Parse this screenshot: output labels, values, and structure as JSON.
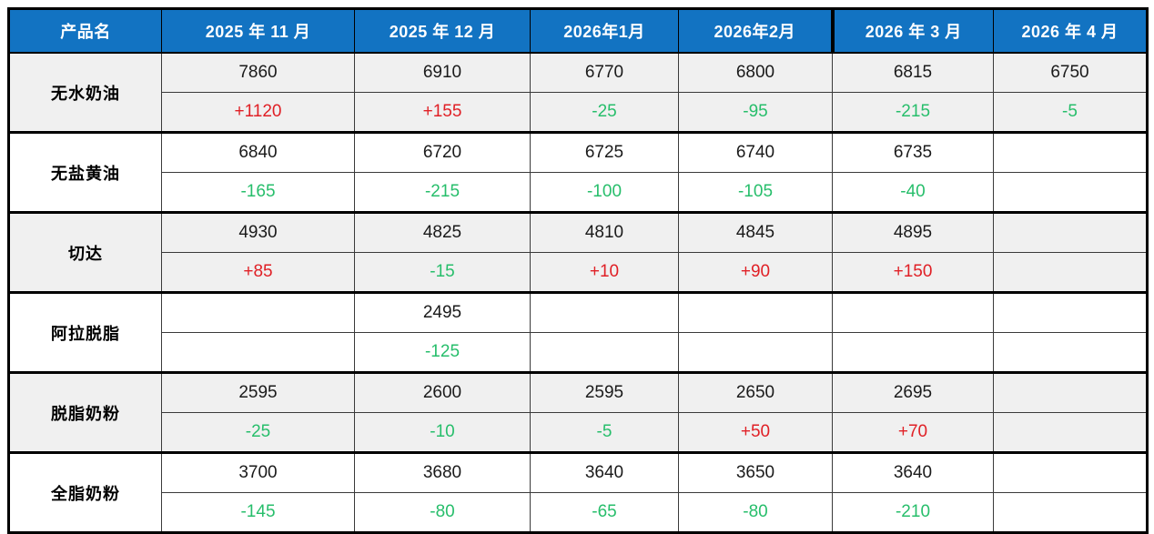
{
  "table": {
    "header": {
      "product_col": "产品名",
      "months": [
        "2025 年 11 月",
        "2025 年 12 月",
        "2026年1月",
        "2026年2月",
        "2026 年 3 月",
        "2026 年 4 月"
      ]
    },
    "rows": [
      {
        "product": "无水奶油",
        "shaded": true,
        "values": [
          "7860",
          "6910",
          "6770",
          "6800",
          "6815",
          "6750"
        ],
        "changes": [
          "+1120",
          "+155",
          "-25",
          "-95",
          "-215",
          "-5"
        ]
      },
      {
        "product": "无盐黄油",
        "shaded": false,
        "values": [
          "6840",
          "6720",
          "6725",
          "6740",
          "6735",
          ""
        ],
        "changes": [
          "-165",
          "-215",
          "-100",
          "-105",
          "-40",
          ""
        ]
      },
      {
        "product": "切达",
        "shaded": true,
        "values": [
          "4930",
          "4825",
          "4810",
          "4845",
          "4895",
          ""
        ],
        "changes": [
          "+85",
          "-15",
          "+10",
          "+90",
          "+150",
          ""
        ]
      },
      {
        "product": "阿拉脱脂",
        "shaded": false,
        "values": [
          "",
          "2495",
          "",
          "",
          "",
          ""
        ],
        "changes": [
          "",
          "-125",
          "",
          "",
          "",
          ""
        ]
      },
      {
        "product": "脱脂奶粉",
        "shaded": true,
        "values": [
          "2595",
          "2600",
          "2595",
          "2650",
          "2695",
          ""
        ],
        "changes": [
          "-25",
          "-10",
          "-5",
          "+50",
          "+70",
          ""
        ]
      },
      {
        "product": "全脂奶粉",
        "shaded": false,
        "values": [
          "3700",
          "3680",
          "3640",
          "3650",
          "3640",
          ""
        ],
        "changes": [
          "-145",
          "-80",
          "-65",
          "-80",
          "-210",
          ""
        ]
      }
    ]
  },
  "colors": {
    "header_bg": "#1273c2",
    "header_text": "#ffffff",
    "positive_change": "#e02026",
    "negative_change": "#27be6b",
    "shaded_row_bg": "#f0f0f0",
    "row_bg": "#ffffff",
    "border": "#000000"
  }
}
